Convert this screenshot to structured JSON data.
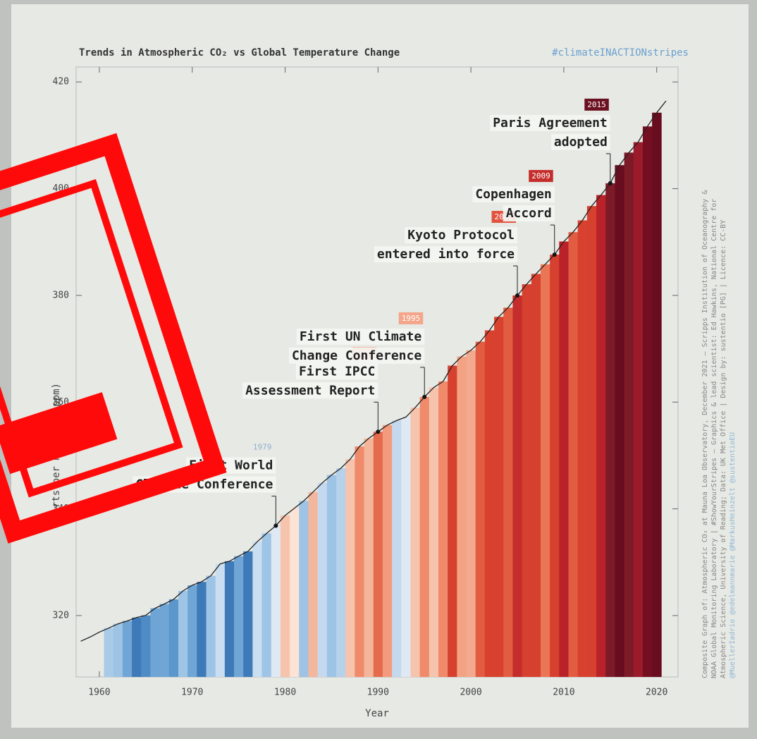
{
  "chart_data": {
    "type": "stripes-line",
    "title": "Trends in Atmospheric CO₂ vs Global Temperature Change",
    "hashtag": "#climateINACTIONstripes",
    "x_label": "Year",
    "y_label": "Parts per million (ppm)",
    "credits": [
      "Composite Graph of: Atmospheric CO₂ at Mauna Loa Observatory, December 2021 – Scripps Institution of Oceanography &",
      "NOAA Global Monitoring Laboratory | #ShowYourStripes – Graphics & lead scientist: Ed Hawkins, National Centre for",
      "Atmospheric Science, University of Reading; Data: UK Met Office | Design by: sustentio [PG] | Licence: CC-BY",
      "@MuellerIadrio @edelmannmarie @MarkusHeinzelt @sustentioEU"
    ],
    "x": [
      1958,
      1959,
      1960,
      1961,
      1962,
      1963,
      1964,
      1965,
      1966,
      1967,
      1968,
      1969,
      1970,
      1971,
      1972,
      1973,
      1974,
      1975,
      1976,
      1977,
      1978,
      1979,
      1980,
      1981,
      1982,
      1983,
      1984,
      1985,
      1986,
      1987,
      1988,
      1989,
      1990,
      1991,
      1992,
      1993,
      1994,
      1995,
      1996,
      1997,
      1998,
      1999,
      2000,
      2001,
      2002,
      2003,
      2004,
      2005,
      2006,
      2007,
      2008,
      2009,
      2010,
      2011,
      2012,
      2013,
      2014,
      2015,
      2016,
      2017,
      2018,
      2019,
      2020,
      2021
    ],
    "series": [
      {
        "name": "Atmospheric CO₂",
        "color": "#222222",
        "values": [
          315.2,
          315.98,
          316.91,
          317.64,
          318.45,
          318.99,
          319.62,
          320.04,
          321.37,
          322.18,
          323.05,
          324.62,
          325.68,
          326.32,
          327.46,
          329.68,
          330.19,
          331.13,
          332.03,
          333.84,
          335.41,
          336.84,
          338.76,
          340.12,
          341.48,
          343.15,
          344.87,
          346.35,
          347.61,
          349.31,
          351.69,
          353.2,
          354.45,
          355.7,
          356.54,
          357.21,
          358.96,
          360.97,
          362.74,
          363.88,
          366.84,
          368.54,
          369.71,
          371.32,
          373.45,
          375.98,
          377.7,
          379.98,
          382.09,
          384.02,
          385.83,
          387.64,
          390.1,
          391.85,
          394.06,
          396.74,
          398.81,
          401.01,
          404.41,
          406.76,
          408.72,
          411.66,
          414.24,
          416.45
        ]
      }
    ],
    "stripe_colors": [
      null,
      null,
      null,
      "#a9cbe8",
      "#9dc3e5",
      "#6fa6d6",
      "#3e7ab8",
      "#4f8cc6",
      "#6ea5d5",
      "#6fa6d6",
      "#5b97cc",
      "#9ec4e6",
      "#6fa6d6",
      "#3e7ab8",
      "#9dc3e5",
      "#c9def0",
      "#3e7ab8",
      "#6fa6d6",
      "#3e7ab8",
      "#c9def0",
      "#9ec4e6",
      "#dfe9f3",
      "#f6c3ad",
      "#fbe3d6",
      "#9dc3e5",
      "#f3b79e",
      "#c5d9ee",
      "#9dc3e5",
      "#b6d1ea",
      "#f6c3ad",
      "#ef8a6a",
      "#f4b69a",
      "#e56b4d",
      "#f39b7c",
      "#c5d9ee",
      "#dfe9f3",
      "#f6c3ad",
      "#ef8a6a",
      "#f6c3ad",
      "#ef8a6a",
      "#d6402f",
      "#f3a284",
      "#f2a98d",
      "#e15c40",
      "#d9412f",
      "#d9412f",
      "#e15c40",
      "#c42d2c",
      "#d6402f",
      "#d6402f",
      "#ea7655",
      "#d6402f",
      "#b92228",
      "#e15c40",
      "#d9412f",
      "#d6402f",
      "#b92228",
      "#7d1a27",
      "#670d1f",
      "#7d1a27",
      "#9b1b2b",
      "#740f22",
      "#670d1f",
      null
    ],
    "annotations": [
      {
        "year": 1979,
        "color": null,
        "lines": [
          "First World",
          "Climate Conference"
        ]
      },
      {
        "year": 1990,
        "color": "#f4a58a",
        "lines": [
          "First IPCC",
          "Assessment Report"
        ]
      },
      {
        "year": 1995,
        "color": "#f4a58a",
        "lines": [
          "First UN Climate",
          "Change Conference"
        ]
      },
      {
        "year": 2005,
        "color": "#e0533f",
        "lines": [
          "Kyoto Protocol",
          "entered into force"
        ]
      },
      {
        "year": 2009,
        "color": "#c42d2c",
        "lines": [
          "Copenhagen",
          "Accord"
        ]
      },
      {
        "year": 2015,
        "color": "#6b1020",
        "lines": [
          "Paris Agreement",
          "adopted"
        ]
      }
    ],
    "xlim": [
      1957.5,
      2022.3
    ],
    "ylim": [
      308.5,
      422.8
    ],
    "xticks": [
      1960,
      1970,
      1980,
      1990,
      2000,
      2010,
      2020
    ],
    "yticks": [
      320,
      340,
      360,
      380,
      400,
      420
    ]
  }
}
